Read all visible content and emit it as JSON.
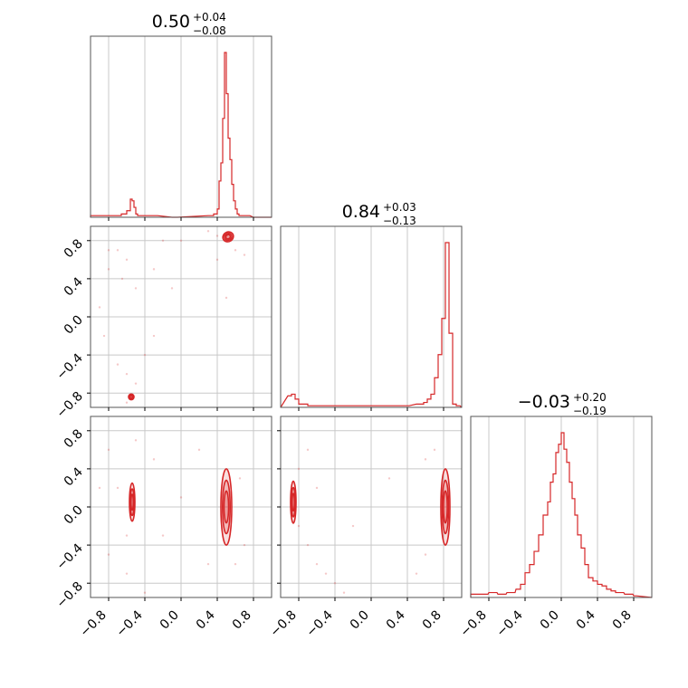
{
  "chart_data": {
    "type": "corner",
    "series_color": "#d62728",
    "parameters": [
      {
        "median": "0.50",
        "plus": "+0.04",
        "minus": "−0.08"
      },
      {
        "median": "0.84",
        "plus": "+0.03",
        "minus": "−0.13"
      },
      {
        "median": "−0.03",
        "plus": "+0.20",
        "minus": "−0.19"
      }
    ],
    "x_range": [
      -1,
      1
    ],
    "y_range": [
      -0.95,
      0.95
    ],
    "x_ticks": [
      -0.8,
      -0.4,
      0.0,
      0.4,
      0.8
    ],
    "x_tick_labels": [
      "−0.8",
      "−0.4",
      "0.0",
      "0.4",
      "0.8"
    ],
    "y_ticks": [
      0.8,
      0.4,
      0.0,
      -0.4,
      -0.8
    ],
    "y_tick_labels": [
      "0.8",
      "0.4",
      "0.0",
      "−0.4",
      "−0.8"
    ],
    "grid": true,
    "histograms": [
      {
        "param": 0,
        "bin_width": 0.02,
        "bins": [
          [
            -1.0,
            0.01
          ],
          [
            -0.9,
            0.01
          ],
          [
            -0.8,
            0.01
          ],
          [
            -0.7,
            0.01
          ],
          [
            -0.66,
            0.02
          ],
          [
            -0.6,
            0.04
          ],
          [
            -0.56,
            0.11
          ],
          [
            -0.54,
            0.1
          ],
          [
            -0.52,
            0.06
          ],
          [
            -0.5,
            0.02
          ],
          [
            -0.48,
            0.01
          ],
          [
            -0.44,
            0.01
          ],
          [
            -0.4,
            0.01
          ],
          [
            -0.36,
            0.01
          ],
          [
            -0.32,
            0.01
          ],
          [
            -0.1,
            0.0
          ],
          [
            0.3,
            0.01
          ],
          [
            0.36,
            0.02
          ],
          [
            0.4,
            0.05
          ],
          [
            0.42,
            0.22
          ],
          [
            0.44,
            0.33
          ],
          [
            0.46,
            0.6
          ],
          [
            0.48,
            1.0
          ],
          [
            0.5,
            0.75
          ],
          [
            0.52,
            0.48
          ],
          [
            0.54,
            0.35
          ],
          [
            0.56,
            0.2
          ],
          [
            0.58,
            0.1
          ],
          [
            0.6,
            0.05
          ],
          [
            0.62,
            0.02
          ],
          [
            0.64,
            0.01
          ],
          [
            0.7,
            0.01
          ],
          [
            0.8,
            0.0
          ]
        ]
      },
      {
        "param": 1,
        "bin_width": 0.04,
        "bins": [
          [
            -0.92,
            0.07
          ],
          [
            -0.88,
            0.08
          ],
          [
            -0.84,
            0.05
          ],
          [
            -0.8,
            0.02
          ],
          [
            -0.7,
            0.01
          ],
          [
            -0.5,
            0.01
          ],
          [
            -0.3,
            0.01
          ],
          [
            -0.1,
            0.01
          ],
          [
            0.1,
            0.01
          ],
          [
            0.3,
            0.01
          ],
          [
            0.5,
            0.02
          ],
          [
            0.58,
            0.03
          ],
          [
            0.62,
            0.05
          ],
          [
            0.66,
            0.08
          ],
          [
            0.7,
            0.18
          ],
          [
            0.74,
            0.32
          ],
          [
            0.78,
            0.54
          ],
          [
            0.82,
            1.0
          ],
          [
            0.86,
            0.45
          ],
          [
            0.9,
            0.02
          ],
          [
            0.94,
            0.01
          ]
        ]
      },
      {
        "param": 2,
        "bin_width": 0.03,
        "bins": [
          [
            -1.0,
            0.02
          ],
          [
            -0.9,
            0.02
          ],
          [
            -0.8,
            0.03
          ],
          [
            -0.7,
            0.02
          ],
          [
            -0.6,
            0.03
          ],
          [
            -0.5,
            0.05
          ],
          [
            -0.45,
            0.08
          ],
          [
            -0.4,
            0.15
          ],
          [
            -0.35,
            0.2
          ],
          [
            -0.3,
            0.28
          ],
          [
            -0.25,
            0.38
          ],
          [
            -0.2,
            0.5
          ],
          [
            -0.15,
            0.58
          ],
          [
            -0.12,
            0.7
          ],
          [
            -0.09,
            0.75
          ],
          [
            -0.06,
            0.88
          ],
          [
            -0.03,
            0.93
          ],
          [
            0.0,
            1.0
          ],
          [
            0.03,
            0.9
          ],
          [
            0.06,
            0.82
          ],
          [
            0.09,
            0.7
          ],
          [
            0.12,
            0.6
          ],
          [
            0.15,
            0.5
          ],
          [
            0.18,
            0.38
          ],
          [
            0.22,
            0.3
          ],
          [
            0.26,
            0.2
          ],
          [
            0.3,
            0.12
          ],
          [
            0.35,
            0.1
          ],
          [
            0.4,
            0.08
          ],
          [
            0.45,
            0.07
          ],
          [
            0.5,
            0.05
          ],
          [
            0.55,
            0.04
          ],
          [
            0.6,
            0.03
          ],
          [
            0.7,
            0.02
          ],
          [
            0.8,
            0.01
          ]
        ]
      }
    ],
    "scatter_panels": [
      {
        "x_param": 0,
        "y_param": 1,
        "blobs": [
          {
            "cx": 0.52,
            "cy": 0.84,
            "rx": 0.06,
            "ry": 0.05,
            "angle": -30
          },
          {
            "cx": -0.55,
            "cy": -0.84,
            "rx": 0.03,
            "ry": 0.03,
            "angle": 0
          }
        ],
        "scatter": [
          [
            -0.7,
            0.7
          ],
          [
            -0.6,
            0.6
          ],
          [
            -0.8,
            0.5
          ],
          [
            -0.5,
            0.3
          ],
          [
            -0.9,
            0.1
          ],
          [
            -0.85,
            -0.2
          ],
          [
            -0.7,
            -0.5
          ],
          [
            -0.6,
            -0.6
          ],
          [
            -0.4,
            -0.4
          ],
          [
            -0.3,
            0.5
          ],
          [
            -0.2,
            0.8
          ],
          [
            0.0,
            0.8
          ],
          [
            0.3,
            0.9
          ],
          [
            0.4,
            0.85
          ],
          [
            0.6,
            0.7
          ],
          [
            0.7,
            0.65
          ],
          [
            0.4,
            0.6
          ],
          [
            -0.6,
            -0.9
          ],
          [
            -0.5,
            -0.7
          ],
          [
            -0.3,
            -0.2
          ],
          [
            0.5,
            0.2
          ],
          [
            -0.1,
            0.3
          ],
          [
            -0.8,
            0.7
          ],
          [
            -0.65,
            0.4
          ]
        ]
      },
      {
        "x_param": 0,
        "y_param": 2,
        "blobs": [
          {
            "cx": 0.5,
            "cy": 0.0,
            "rx": 0.06,
            "ry": 0.4,
            "angle": 0
          },
          {
            "cx": -0.54,
            "cy": 0.05,
            "rx": 0.03,
            "ry": 0.2,
            "angle": 0
          }
        ],
        "scatter": [
          [
            -0.8,
            0.6
          ],
          [
            -0.7,
            0.2
          ],
          [
            -0.8,
            -0.5
          ],
          [
            -0.6,
            -0.7
          ],
          [
            -0.4,
            -0.9
          ],
          [
            -0.3,
            0.5
          ],
          [
            -0.2,
            -0.3
          ],
          [
            0.0,
            0.1
          ],
          [
            0.2,
            0.6
          ],
          [
            0.3,
            -0.6
          ],
          [
            0.65,
            0.3
          ],
          [
            0.7,
            -0.4
          ],
          [
            -0.5,
            0.7
          ],
          [
            -0.9,
            0.2
          ],
          [
            -0.6,
            -0.3
          ],
          [
            0.6,
            -0.6
          ]
        ]
      },
      {
        "x_param": 1,
        "y_param": 2,
        "blobs": [
          {
            "cx": 0.82,
            "cy": 0.0,
            "rx": 0.05,
            "ry": 0.4,
            "angle": 0
          },
          {
            "cx": -0.86,
            "cy": 0.05,
            "rx": 0.03,
            "ry": 0.22,
            "angle": 0
          }
        ],
        "scatter": [
          [
            -0.7,
            -0.4
          ],
          [
            -0.6,
            -0.6
          ],
          [
            -0.5,
            -0.7
          ],
          [
            -0.4,
            -0.8
          ],
          [
            -0.3,
            -0.9
          ],
          [
            -0.8,
            0.4
          ],
          [
            -0.7,
            0.6
          ],
          [
            0.6,
            0.5
          ],
          [
            0.6,
            -0.5
          ],
          [
            0.7,
            0.6
          ],
          [
            -0.2,
            -0.2
          ],
          [
            0.2,
            0.3
          ],
          [
            -0.6,
            0.2
          ],
          [
            0.5,
            -0.7
          ],
          [
            -0.8,
            -0.2
          ]
        ]
      }
    ]
  }
}
